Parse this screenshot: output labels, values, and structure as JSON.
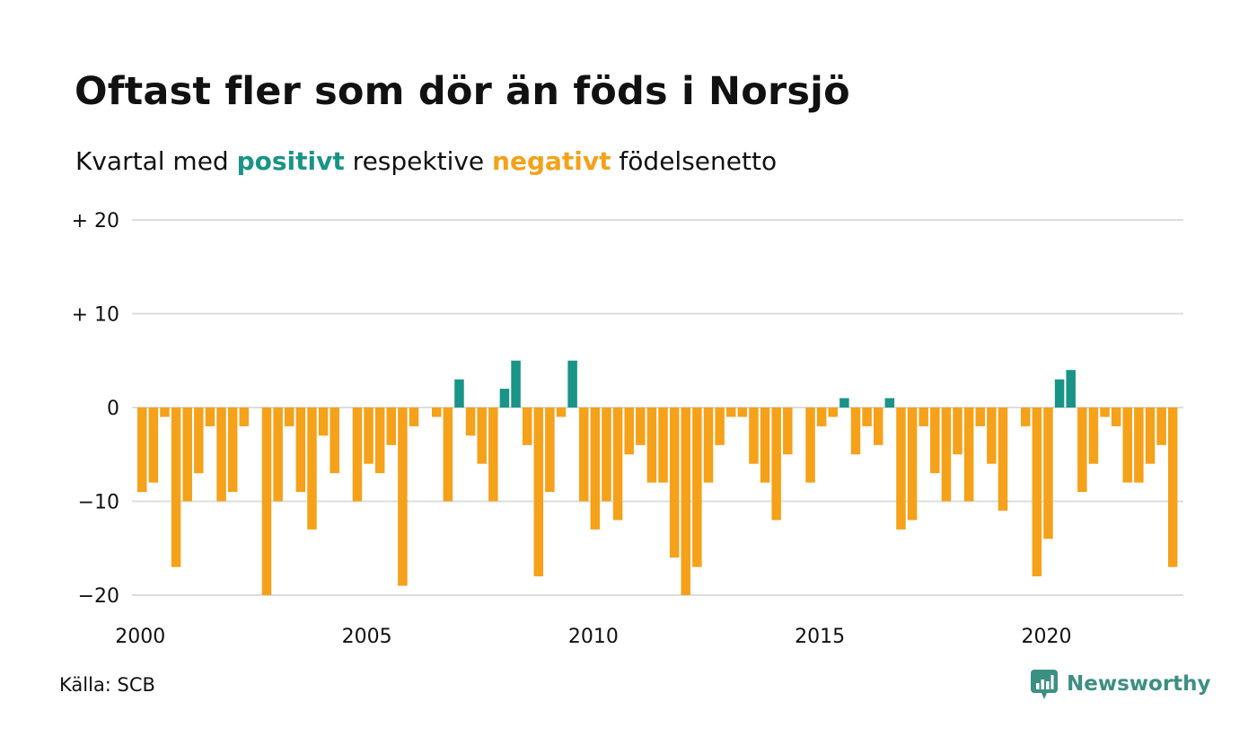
{
  "title": "Oftast fler som dör än föds i Norsjö",
  "subtitle": {
    "prefix": "Kvartal med ",
    "positive_word": "positivt",
    "middle": " respektive ",
    "negative_word": "negativt",
    "suffix": " födelsenetto"
  },
  "source": "Källa: SCB",
  "brand": {
    "name": "Newsworthy",
    "icon": "newsworthy-logo-icon"
  },
  "colors": {
    "positive": "#1a9486",
    "negative": "#f5a11a",
    "grid": "#dddddd",
    "text": "#111111",
    "brand": "#3c8f83"
  },
  "chart_data": {
    "type": "bar",
    "x_start_year": 2000,
    "periods_per_year": 4,
    "ylim": [
      -20,
      20
    ],
    "y_ticks": [
      {
        "value": 20,
        "label": "+ 20"
      },
      {
        "value": 10,
        "label": "+ 10"
      },
      {
        "value": 0,
        "label": "0"
      },
      {
        "value": -10,
        "label": "−10"
      },
      {
        "value": -20,
        "label": "−20"
      }
    ],
    "x_ticks": [
      {
        "value": 2000,
        "label": "2000"
      },
      {
        "value": 2005,
        "label": "2005"
      },
      {
        "value": 2010,
        "label": "2010"
      },
      {
        "value": 2015,
        "label": "2015"
      },
      {
        "value": 2020,
        "label": "2020"
      }
    ],
    "values": [
      -9,
      -8,
      -1,
      -17,
      -10,
      -7,
      -2,
      -10,
      -9,
      -2,
      0,
      -20,
      -10,
      -2,
      -9,
      -13,
      -3,
      -7,
      0,
      -10,
      -6,
      -7,
      -4,
      -19,
      -2,
      0,
      -1,
      -10,
      3,
      -3,
      -6,
      -10,
      2,
      5,
      -4,
      -18,
      -9,
      -1,
      5,
      -10,
      -13,
      -10,
      -12,
      -5,
      -4,
      -8,
      -8,
      -16,
      -20,
      -17,
      -8,
      -4,
      -1,
      -1,
      -6,
      -8,
      -12,
      -5,
      0,
      -8,
      -2,
      -1,
      1,
      -5,
      -2,
      -4,
      1,
      -13,
      -12,
      -2,
      -7,
      -10,
      -5,
      -10,
      -2,
      -6,
      -11,
      0,
      -2,
      -18,
      -14,
      3,
      4,
      -9,
      -6,
      -1,
      -2,
      -8,
      -8,
      -6,
      -4,
      -17
    ]
  }
}
